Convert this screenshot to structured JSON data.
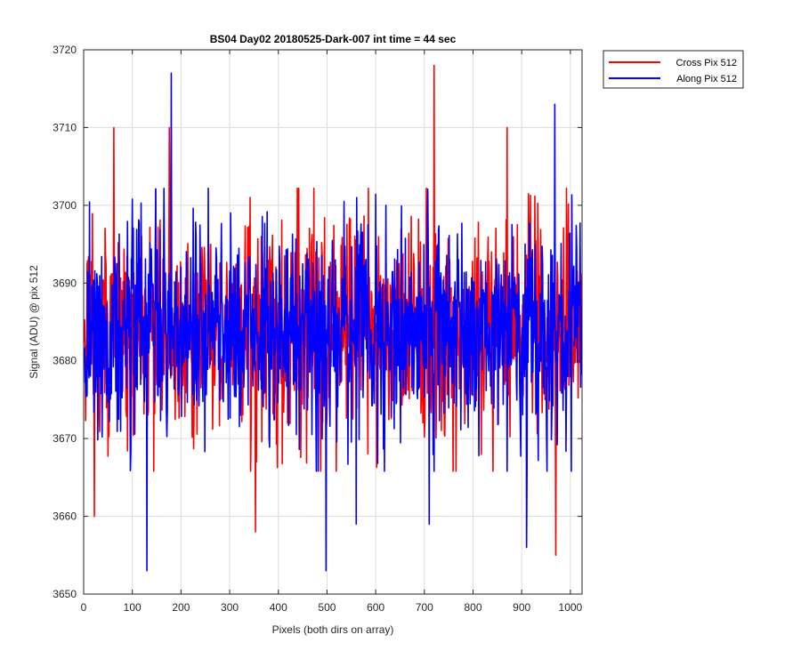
{
  "chart_data": {
    "type": "line",
    "title": "BS04 Day02 20180525-Dark-007 int time = 44 sec",
    "xlabel": "Pixels (both dirs on array)",
    "ylabel": "Signal (ADU) @ pix 512",
    "xlim": [
      0,
      1024
    ],
    "ylim": [
      3650,
      3720
    ],
    "xticks": [
      0,
      100,
      200,
      300,
      400,
      500,
      600,
      700,
      800,
      900,
      1000
    ],
    "yticks": [
      3650,
      3660,
      3670,
      3680,
      3690,
      3700,
      3710,
      3720
    ],
    "grid": true,
    "legend_position": "outside-top-right",
    "series": [
      {
        "name": "Cross Pix 512",
        "color": "#ff0000",
        "x_start": 1,
        "x_step": 1,
        "count": 1024,
        "mean": 3684,
        "std": 7,
        "extremes": [
          [
            22,
            3660
          ],
          [
            62,
            3710
          ],
          [
            176,
            3710
          ],
          [
            353,
            3658
          ],
          [
            720,
            3718
          ],
          [
            870,
            3710
          ],
          [
            970,
            3655
          ]
        ]
      },
      {
        "name": "Along Pix 512",
        "color": "#0000ff",
        "x_start": 1,
        "x_step": 1,
        "count": 1024,
        "mean": 3684,
        "std": 7,
        "extremes": [
          [
            130,
            3653
          ],
          [
            180,
            3717
          ],
          [
            498,
            3653
          ],
          [
            560,
            3659
          ],
          [
            710,
            3659
          ],
          [
            910,
            3656
          ],
          [
            968,
            3713
          ]
        ]
      }
    ]
  }
}
